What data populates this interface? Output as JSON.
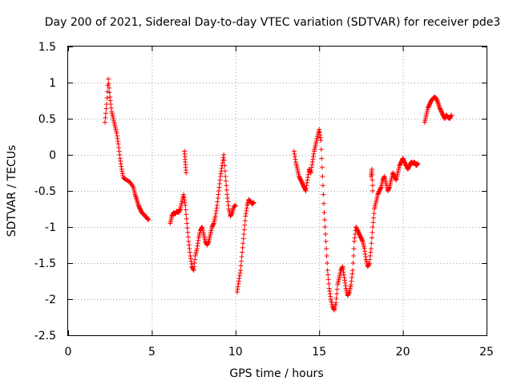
{
  "chart_data": {
    "type": "scatter",
    "title": "Day 200 of 2021, Sidereal Day-to-day VTEC variation (SDTVAR) for receiver pde3",
    "xlabel": "GPS time / hours",
    "ylabel": "SDTVAR / TECUs",
    "xlim": [
      0,
      25
    ],
    "ylim": [
      -2.5,
      1.5
    ],
    "x_ticks": [
      0,
      5,
      10,
      15,
      20,
      25
    ],
    "x_tick_labels": [
      "0",
      "5",
      "10",
      "15",
      "20",
      "25"
    ],
    "y_ticks": [
      -2.5,
      -2,
      -1.5,
      -1,
      -0.5,
      0,
      0.5,
      1,
      1.5
    ],
    "y_tick_labels": [
      "-2.5",
      "-2",
      "-1.5",
      "-1",
      "-0.5",
      "0",
      "0.5",
      "1",
      "1.5"
    ],
    "grid": true,
    "marker": "plus",
    "series": [
      {
        "name": "SDTVAR",
        "color": "#ff0000",
        "segments": [
          {
            "x": [
              2.2,
              2.3,
              2.4,
              2.5,
              2.6,
              2.7,
              2.8,
              2.9,
              3.0,
              3.1,
              3.2,
              3.3,
              3.5,
              3.7,
              3.9,
              4.0,
              4.1,
              4.2,
              4.3,
              4.4,
              4.5,
              4.6,
              4.7,
              4.8
            ],
            "y": [
              0.45,
              0.7,
              1.05,
              0.8,
              0.6,
              0.5,
              0.4,
              0.3,
              0.15,
              -0.05,
              -0.2,
              -0.32,
              -0.35,
              -0.38,
              -0.45,
              -0.55,
              -0.62,
              -0.7,
              -0.75,
              -0.8,
              -0.82,
              -0.85,
              -0.87,
              -0.9
            ]
          },
          {
            "x": [
              6.1,
              6.2,
              6.3,
              6.4,
              6.5,
              6.6,
              6.7,
              6.8,
              6.9,
              7.0,
              7.1,
              7.2,
              7.3,
              7.4,
              7.5,
              7.6,
              7.7,
              7.8,
              7.9,
              8.0,
              8.1,
              8.2,
              8.3,
              8.4,
              8.5,
              8.6,
              8.7,
              8.8,
              8.9,
              9.0,
              9.1,
              9.2,
              9.3,
              9.4,
              9.5,
              9.6,
              9.7,
              9.8,
              9.9,
              10.0
            ],
            "y": [
              -0.95,
              -0.85,
              -0.8,
              -0.82,
              -0.78,
              -0.8,
              -0.75,
              -0.65,
              -0.55,
              -0.7,
              -0.95,
              -1.2,
              -1.4,
              -1.55,
              -1.6,
              -1.4,
              -1.3,
              -1.15,
              -1.05,
              -1.0,
              -1.1,
              -1.2,
              -1.25,
              -1.2,
              -1.1,
              -1.0,
              -0.95,
              -0.85,
              -0.7,
              -0.5,
              -0.3,
              -0.15,
              0.0,
              -0.3,
              -0.55,
              -0.75,
              -0.85,
              -0.8,
              -0.72,
              -0.7
            ]
          },
          {
            "x": [
              6.95,
              7.0,
              7.05
            ],
            "y": [
              0.05,
              -0.1,
              -0.25
            ]
          },
          {
            "x": [
              10.1,
              10.2,
              10.3,
              10.4,
              10.5,
              10.6,
              10.7,
              10.8,
              10.9,
              11.0,
              11.1
            ],
            "y": [
              -1.9,
              -1.75,
              -1.6,
              -1.35,
              -1.1,
              -0.85,
              -0.7,
              -0.62,
              -0.65,
              -0.68,
              -0.66
            ]
          },
          {
            "x": [
              13.5,
              13.6,
              13.7,
              13.8,
              13.9,
              14.0,
              14.1,
              14.2,
              14.3,
              14.4,
              14.5,
              14.6,
              14.7,
              14.8,
              14.9,
              15.0,
              15.1,
              15.2,
              15.3,
              15.4,
              15.5,
              15.6,
              15.7,
              15.8,
              15.9,
              16.0,
              16.1,
              16.2,
              16.3,
              16.4,
              16.5,
              16.6,
              16.7,
              16.8,
              16.9,
              17.0,
              17.1,
              17.2,
              17.3,
              17.4,
              17.5,
              17.6,
              17.7,
              17.8,
              17.9,
              18.0,
              18.1,
              18.2,
              18.3,
              18.4,
              18.5,
              18.6,
              18.7,
              18.8,
              18.9,
              19.0,
              19.1,
              19.2,
              19.3,
              19.4,
              19.5,
              19.6,
              19.7,
              19.8,
              19.9,
              20.0,
              20.1,
              20.2,
              20.3,
              20.4,
              20.5,
              20.6,
              20.7,
              20.8,
              20.9
            ],
            "y": [
              0.05,
              -0.1,
              -0.2,
              -0.3,
              -0.35,
              -0.4,
              -0.45,
              -0.5,
              -0.35,
              -0.2,
              -0.25,
              -0.1,
              0.05,
              0.15,
              0.25,
              0.35,
              0.2,
              -0.3,
              -0.8,
              -1.2,
              -1.6,
              -1.85,
              -2.0,
              -2.1,
              -2.15,
              -2.05,
              -1.8,
              -1.7,
              -1.6,
              -1.55,
              -1.7,
              -1.85,
              -1.95,
              -1.9,
              -1.8,
              -1.6,
              -1.2,
              -1.0,
              -1.05,
              -1.1,
              -1.15,
              -1.2,
              -1.3,
              -1.45,
              -1.55,
              -1.5,
              -1.3,
              -1.0,
              -0.75,
              -0.65,
              -0.55,
              -0.5,
              -0.45,
              -0.35,
              -0.3,
              -0.4,
              -0.5,
              -0.45,
              -0.35,
              -0.25,
              -0.3,
              -0.35,
              -0.25,
              -0.15,
              -0.1,
              -0.05,
              -0.1,
              -0.15,
              -0.2,
              -0.15,
              -0.1,
              -0.12,
              -0.1,
              -0.15,
              -0.12
            ]
          },
          {
            "x": [
              18.1,
              18.15,
              18.2
            ],
            "y": [
              -0.3,
              -0.2,
              -0.5
            ]
          },
          {
            "x": [
              21.3,
              21.4,
              21.5,
              21.6,
              21.7,
              21.8,
              21.9,
              22.0,
              22.1,
              22.2,
              22.3,
              22.4,
              22.5,
              22.6,
              22.7,
              22.8,
              22.9
            ],
            "y": [
              0.45,
              0.55,
              0.65,
              0.7,
              0.75,
              0.78,
              0.8,
              0.78,
              0.72,
              0.65,
              0.6,
              0.55,
              0.5,
              0.55,
              0.52,
              0.5,
              0.55
            ]
          }
        ]
      }
    ]
  }
}
